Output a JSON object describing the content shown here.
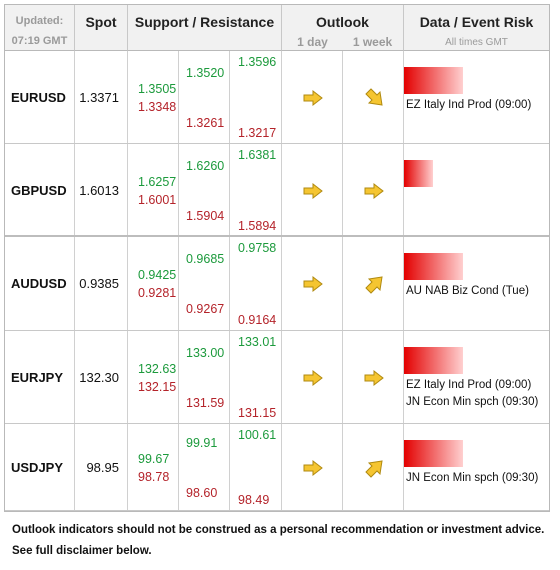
{
  "header": {
    "updated_label": "Updated:",
    "updated_time": "07:19 GMT",
    "spot": "Spot",
    "support_resistance": "Support / Resistance",
    "outlook": "Outlook",
    "outlook_1day": "1 day",
    "outlook_1week": "1 week",
    "data_event_risk": "Data / Event Risk",
    "all_times": "All times GMT"
  },
  "rows": [
    {
      "pair": "EURUSD",
      "spot": "1.3371",
      "s1_res": "1.3505",
      "s1_sup": "1.3348",
      "s2_res": "1.3520",
      "s2_sup": "1.3261",
      "s3_res": "1.3596",
      "s3_sup": "1.3217",
      "outlook_1day": "arrow-right-icon",
      "outlook_1week": "arrow-down-right-icon",
      "risk_level": 0.62,
      "events": [
        "EZ Italy Ind Prod (09:00)"
      ]
    },
    {
      "pair": "GBPUSD",
      "spot": "1.6013",
      "s1_res": "1.6257",
      "s1_sup": "1.6001",
      "s2_res": "1.6260",
      "s2_sup": "1.5904",
      "s3_res": "1.6381",
      "s3_sup": "1.5894",
      "outlook_1day": "arrow-right-icon",
      "outlook_1week": "arrow-right-icon",
      "risk_level": 0.3,
      "events": []
    },
    {
      "pair": "AUDUSD",
      "spot": "0.9385",
      "s1_res": "0.9425",
      "s1_sup": "0.9281",
      "s2_res": "0.9685",
      "s2_sup": "0.9267",
      "s3_res": "0.9758",
      "s3_sup": "0.9164",
      "outlook_1day": "arrow-right-icon",
      "outlook_1week": "arrow-up-right-icon",
      "risk_level": 0.62,
      "events": [
        "AU NAB Biz Cond (Tue)"
      ]
    },
    {
      "pair": "EURJPY",
      "spot": "132.30",
      "s1_res": "132.63",
      "s1_sup": "132.15",
      "s2_res": "133.00",
      "s2_sup": "131.59",
      "s3_res": "133.01",
      "s3_sup": "131.15",
      "outlook_1day": "arrow-right-icon",
      "outlook_1week": "arrow-right-icon",
      "risk_level": 0.62,
      "events": [
        "EZ Italy Ind Prod (09:00)",
        "JN Econ Min spch (09:30)"
      ]
    },
    {
      "pair": "USDJPY",
      "spot": "98.95",
      "s1_res": "99.67",
      "s1_sup": "98.78",
      "s2_res": "99.91",
      "s2_sup": "98.60",
      "s3_res": "100.61",
      "s3_sup": "98.49",
      "outlook_1day": "arrow-right-icon",
      "outlook_1week": "arrow-up-right-icon",
      "risk_level": 0.62,
      "events": [
        "JN Econ Min spch (09:30)"
      ]
    }
  ],
  "footer": {
    "line1": "Outlook indicators should not be construed as a personal recommendation or investment advice.",
    "line2": "See full disclaimer below."
  },
  "colors": {
    "support": "#b4232a",
    "resistance": "#1c9a3c",
    "risk": "#e30000",
    "arrow": "#f5c531"
  }
}
